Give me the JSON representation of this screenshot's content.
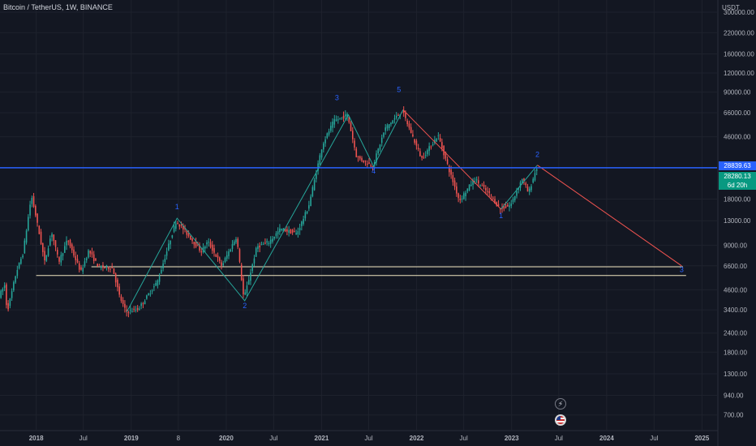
{
  "header": {
    "symbol": "Bitcoin / TetherUS",
    "interval": "1W",
    "exchange": "BINANCE"
  },
  "chart_data": {
    "type": "candlestick",
    "scale": "log",
    "y_unit": "USDT",
    "ylim": [
      560,
      360000
    ],
    "xlim": [
      "2017-08-15",
      "2025-02-28"
    ],
    "y_ticks": [
      "300000.00",
      "220000.00",
      "160000.00",
      "120000.00",
      "90000.00",
      "66000.00",
      "46000.00",
      "18000.00",
      "13000.00",
      "9000.00",
      "6600.00",
      "4600.00",
      "3400.00",
      "2400.00",
      "1800.00",
      "1300.00",
      "940.00",
      "700.00"
    ],
    "x_ticks": [
      {
        "label": "2018",
        "date": "2018-01-01"
      },
      {
        "label": "Jul",
        "date": "2018-07-01"
      },
      {
        "label": "2019",
        "date": "2019-01-01"
      },
      {
        "label": "8",
        "date": "2019-07-01"
      },
      {
        "label": "2020",
        "date": "2020-01-01"
      },
      {
        "label": "Jul",
        "date": "2020-07-01"
      },
      {
        "label": "2021",
        "date": "2021-01-01"
      },
      {
        "label": "Jul",
        "date": "2021-07-01"
      },
      {
        "label": "2022",
        "date": "2022-01-01"
      },
      {
        "label": "Jul",
        "date": "2022-07-01"
      },
      {
        "label": "2023",
        "date": "2023-01-01"
      },
      {
        "label": "Jul",
        "date": "2023-07-01"
      },
      {
        "label": "2024",
        "date": "2024-01-01"
      },
      {
        "label": "Jul",
        "date": "2024-07-01"
      },
      {
        "label": "2025",
        "date": "2025-01-01"
      }
    ],
    "price_path": [
      [
        "2017-08-15",
        4200
      ],
      [
        "2017-09-05",
        4900
      ],
      [
        "2017-09-15",
        3300
      ],
      [
        "2017-10-01",
        4300
      ],
      [
        "2017-10-20",
        6000
      ],
      [
        "2017-11-15",
        8000
      ],
      [
        "2017-12-17",
        19000
      ],
      [
        "2018-01-01",
        14500
      ],
      [
        "2018-02-06",
        7000
      ],
      [
        "2018-03-05",
        11000
      ],
      [
        "2018-04-01",
        7000
      ],
      [
        "2018-05-05",
        9800
      ],
      [
        "2018-06-25",
        6000
      ],
      [
        "2018-07-25",
        8300
      ],
      [
        "2018-09-01",
        6500
      ],
      [
        "2018-10-25",
        6400
      ],
      [
        "2018-11-20",
        4200
      ],
      [
        "2018-12-15",
        3300
      ],
      [
        "2019-02-01",
        3450
      ],
      [
        "2019-04-15",
        5200
      ],
      [
        "2019-06-26",
        13000
      ],
      [
        "2019-08-01",
        11000
      ],
      [
        "2019-09-30",
        8200
      ],
      [
        "2019-10-26",
        9500
      ],
      [
        "2019-12-18",
        6600
      ],
      [
        "2020-02-13",
        10300
      ],
      [
        "2020-03-12",
        4000
      ],
      [
        "2020-05-01",
        8800
      ],
      [
        "2020-06-15",
        9400
      ],
      [
        "2020-07-31",
        11500
      ],
      [
        "2020-10-01",
        10700
      ],
      [
        "2020-11-15",
        16000
      ],
      [
        "2021-01-08",
        41000
      ],
      [
        "2021-02-20",
        58000
      ],
      [
        "2021-04-14",
        64000
      ],
      [
        "2021-05-19",
        34000
      ],
      [
        "2021-07-20",
        29500
      ],
      [
        "2021-09-05",
        52000
      ],
      [
        "2021-11-10",
        68000
      ],
      [
        "2022-01-24",
        33000
      ],
      [
        "2022-03-28",
        47000
      ],
      [
        "2022-05-12",
        27000
      ],
      [
        "2022-06-18",
        17600
      ],
      [
        "2022-08-15",
        24400
      ],
      [
        "2022-10-15",
        19100
      ],
      [
        "2022-11-21",
        15500
      ],
      [
        "2023-01-01",
        16500
      ],
      [
        "2023-02-15",
        24800
      ],
      [
        "2023-03-10",
        19600
      ],
      [
        "2023-04-10",
        28800
      ]
    ],
    "support_lines": [
      {
        "from": "2018-08-01",
        "to": "2024-10-20",
        "price": 6500,
        "color": "#f0e6c0"
      },
      {
        "from": "2018-01-01",
        "to": "2024-11-01",
        "price": 5700,
        "color": "#f0e6c0"
      }
    ],
    "horizontal_line": {
      "price": 28839.63,
      "color": "#2962ff"
    },
    "wave_lines": [
      {
        "color": "#26a69a",
        "points": [
          [
            "2018-12-15",
            3300
          ],
          [
            "2019-06-26",
            13500
          ],
          [
            "2020-03-12",
            3900
          ],
          [
            "2021-04-14",
            64000
          ],
          [
            "2021-07-20",
            29500
          ],
          [
            "2021-11-10",
            69000
          ]
        ]
      },
      {
        "color": "#ef5350",
        "points": [
          [
            "2021-11-10",
            69000
          ],
          [
            "2022-11-21",
            15500
          ]
        ]
      },
      {
        "color": "#26a69a",
        "points": [
          [
            "2022-11-21",
            15500
          ],
          [
            "2023-04-10",
            30000
          ]
        ]
      },
      {
        "color": "#ef5350",
        "points": [
          [
            "2023-04-10",
            30000
          ],
          [
            "2024-10-15",
            6600
          ]
        ]
      }
    ],
    "wave_labels": [
      {
        "text": "1",
        "date": "2019-06-26",
        "price": 15500
      },
      {
        "text": "2",
        "date": "2020-03-12",
        "price": 3500
      },
      {
        "text": "3",
        "date": "2021-03-01",
        "price": 80000
      },
      {
        "text": "4",
        "date": "2021-07-20",
        "price": 26500
      },
      {
        "text": "5",
        "date": "2021-10-25",
        "price": 90000
      },
      {
        "text": "1",
        "date": "2022-11-21",
        "price": 13500
      },
      {
        "text": "2",
        "date": "2023-04-10",
        "price": 34000
      },
      {
        "text": "3",
        "date": "2024-10-15",
        "price": 6000
      }
    ]
  },
  "axis": {
    "unit": "USDT"
  },
  "price_labels": {
    "line_price": "28839.63",
    "last_price": "28280.13",
    "countdown": "6d 20h"
  },
  "colors": {
    "up": "#26a69a",
    "down": "#ef5350",
    "background": "#131722",
    "grid": "#1e222d",
    "axis_text": "#b2b5be",
    "wave_label": "#2962ff"
  },
  "icons": [
    "lightning-icon",
    "us-flag-icon"
  ]
}
